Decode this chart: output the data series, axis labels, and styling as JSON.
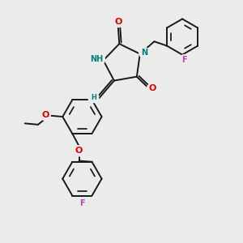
{
  "bg_color": "#ebebeb",
  "bond_color": "#1a1a1a",
  "bond_width": 1.4,
  "dbo": 0.055,
  "atom_colors": {
    "N": "#008080",
    "O": "#dd0000",
    "F": "#bb44bb",
    "H_label": "#008080",
    "C": "#1a1a1a"
  },
  "fs": 7.0
}
